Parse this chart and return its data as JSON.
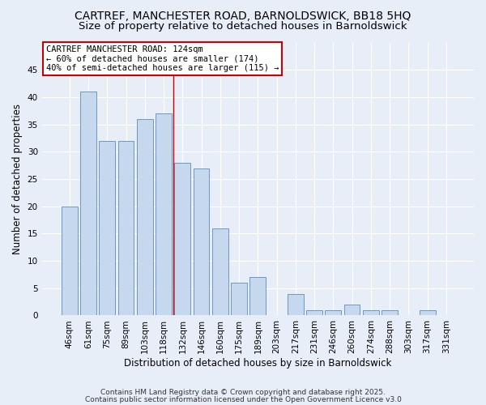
{
  "title1": "CARTREF, MANCHESTER ROAD, BARNOLDSWICK, BB18 5HQ",
  "title2": "Size of property relative to detached houses in Barnoldswick",
  "xlabel": "Distribution of detached houses by size in Barnoldswick",
  "ylabel": "Number of detached properties",
  "bar_labels": [
    "46sqm",
    "61sqm",
    "75sqm",
    "89sqm",
    "103sqm",
    "118sqm",
    "132sqm",
    "146sqm",
    "160sqm",
    "175sqm",
    "189sqm",
    "203sqm",
    "217sqm",
    "231sqm",
    "246sqm",
    "260sqm",
    "274sqm",
    "288sqm",
    "303sqm",
    "317sqm",
    "331sqm"
  ],
  "bar_values": [
    20,
    41,
    32,
    32,
    36,
    37,
    28,
    27,
    16,
    6,
    7,
    0,
    4,
    1,
    1,
    2,
    1,
    1,
    0,
    1,
    0
  ],
  "bar_color": "#c5d8ee",
  "bar_edgecolor": "#5b8dc0",
  "bg_color": "#e8eef8",
  "grid_color": "#ffffff",
  "annotation_line1": "CARTREF MANCHESTER ROAD: 124sqm",
  "annotation_line2": "← 60% of detached houses are smaller (174)",
  "annotation_line3": "40% of semi-detached houses are larger (115) →",
  "annotation_box_color": "#ffffff",
  "annotation_box_edgecolor": "#cc0000",
  "red_line_x": 5.5,
  "ylim": [
    0,
    50
  ],
  "yticks": [
    0,
    5,
    10,
    15,
    20,
    25,
    30,
    35,
    40,
    45
  ],
  "footer_line1": "Contains HM Land Registry data © Crown copyright and database right 2025.",
  "footer_line2": "Contains public sector information licensed under the Open Government Licence v3.0",
  "title1_fontsize": 10,
  "title2_fontsize": 9.5,
  "axis_label_fontsize": 8.5,
  "tick_fontsize": 7.5,
  "annotation_fontsize": 7.5,
  "footer_fontsize": 6.5
}
